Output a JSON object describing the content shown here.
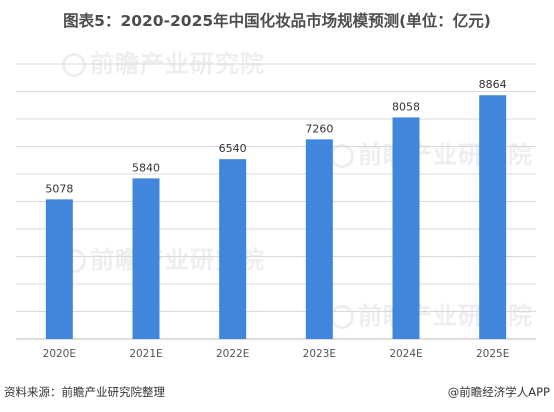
{
  "title": "图表5：2020-2025年中国化妆品市场规模预测(单位：亿元)",
  "footer": {
    "source": "资料来源：前瞻产业研究院整理",
    "credit": "@前瞻经济学人APP"
  },
  "watermark": "前瞻产业研究院",
  "colors": {
    "bar": "#3f86dc",
    "grid": "#d9d9d9",
    "axis": "#bfbfbf"
  },
  "chart_data": {
    "type": "bar",
    "title": "图表5：2020-2025年中国化妆品市场规模预测(单位：亿元)",
    "categories": [
      "2020E",
      "2021E",
      "2022E",
      "2023E",
      "2024E",
      "2025E"
    ],
    "values": [
      5078,
      5840,
      6540,
      7260,
      8058,
      8864
    ],
    "ylim": [
      0,
      10000
    ],
    "grid": true,
    "legend": "none"
  }
}
